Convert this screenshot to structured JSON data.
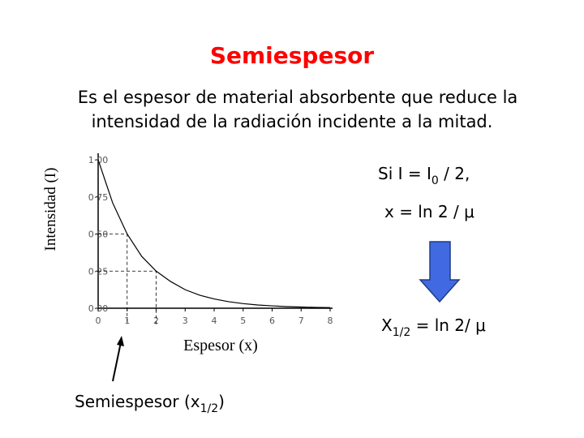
{
  "slide": {
    "title": "Semiespesor",
    "subtitle_lines": [
      "Es el espesor de material absorbente que reduce la",
      "intensidad de la radiación incidente a la mitad."
    ],
    "condition": [
      "Si I = I",
      "0",
      " / 2,"
    ],
    "formula": "x = ln 2 / μ",
    "result": [
      "X",
      "1/2",
      " = ln 2/ μ"
    ],
    "pointer_label": [
      "Semiespesor (x",
      "1/2",
      ")"
    ]
  },
  "chart_data": {
    "type": "line",
    "x_label": "Espesor (x)",
    "y_label": "Intensidad (I)",
    "x": [
      0,
      0.5,
      1,
      1.5,
      2,
      2.5,
      3,
      3.5,
      4,
      4.5,
      5,
      5.5,
      6,
      6.5,
      7,
      7.5,
      8
    ],
    "values": [
      1,
      0.71,
      0.5,
      0.35,
      0.25,
      0.18,
      0.125,
      0.088,
      0.0625,
      0.044,
      0.031,
      0.022,
      0.016,
      0.011,
      0.008,
      0.0055,
      0.004
    ],
    "color": "#000000",
    "xlim": [
      0,
      8
    ],
    "xticks": [
      0,
      1,
      2,
      3,
      4,
      5,
      6,
      7,
      8
    ],
    "ylim": [
      0,
      1
    ],
    "yticks": [
      {
        "value": 0,
        "label": "0·00"
      },
      {
        "value": 0.25,
        "label": "0·25"
      },
      {
        "value": 0.5,
        "label": "0·50"
      },
      {
        "value": 0.75,
        "label": "0·75"
      },
      {
        "value": 1,
        "label": "1·00"
      }
    ],
    "guides": [
      {
        "x": 1,
        "y": 0.5
      },
      {
        "x": 2,
        "y": 0.25
      }
    ]
  }
}
